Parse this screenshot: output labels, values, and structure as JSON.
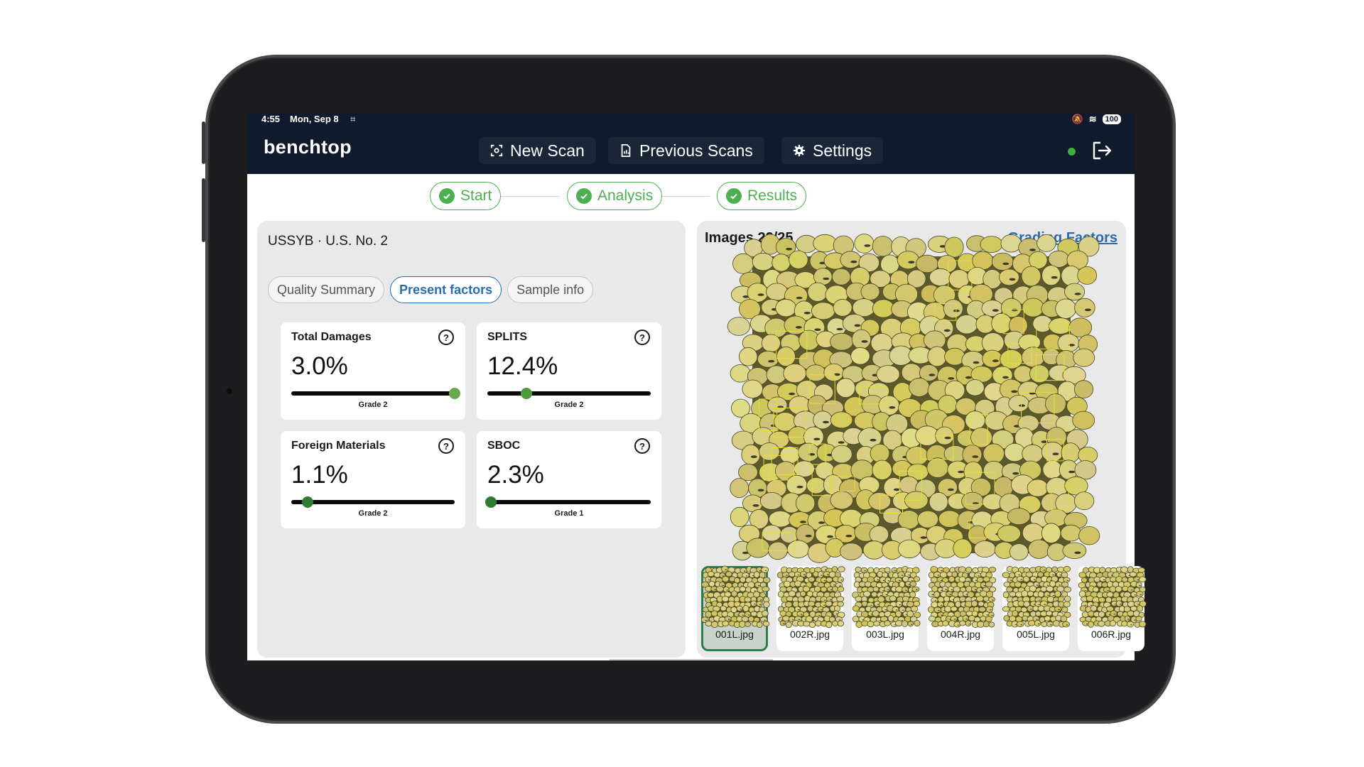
{
  "status_bar": {
    "time": "4:55",
    "date": "Mon, Sep 8",
    "battery": "100"
  },
  "app": {
    "brand": "benchtop",
    "nav": [
      {
        "label": "New Scan",
        "icon": "scan-icon"
      },
      {
        "label": "Previous Scans",
        "icon": "document-chart-icon"
      },
      {
        "label": "Settings",
        "icon": "gear-icon"
      }
    ],
    "connection_status_color": "#3cb043"
  },
  "steps": [
    {
      "label": "Start",
      "done": true
    },
    {
      "label": "Analysis",
      "done": true
    },
    {
      "label": "Results",
      "done": true
    }
  ],
  "sample": {
    "grade_title": "USSYB ·  U.S. No. 2"
  },
  "tabs": [
    {
      "label": "Quality Summary",
      "active": false
    },
    {
      "label": "Present factors",
      "active": true
    },
    {
      "label": "Sample info",
      "active": false
    }
  ],
  "factors": [
    {
      "name": "Total Damages",
      "value": "3.0%",
      "grade": "Grade 2",
      "level": 1.0
    },
    {
      "name": "SPLITS",
      "value": "12.4%",
      "grade": "Grade 2",
      "level": 0.24
    },
    {
      "name": "Foreign Materials",
      "value": "1.1%",
      "grade": "Grade 2",
      "level": 0.1
    },
    {
      "name": "SBOC",
      "value": "2.3%",
      "grade": "Grade 1",
      "level": 0.02
    }
  ],
  "images": {
    "count_label": "Images 22/25",
    "grading_link": "Grading Factors",
    "thumbnails": [
      "001L.jpg",
      "002R.jpg",
      "003L.jpg",
      "004R.jpg",
      "005L.jpg",
      "006R.jpg"
    ],
    "selected_index": 0
  },
  "colors": {
    "header_bg": "#0f1a2c",
    "step_green": "#4caf50",
    "link_blue": "#2b6cb0",
    "knob_bright": "#6aa84f",
    "knob_dark": "#2e7d32"
  }
}
